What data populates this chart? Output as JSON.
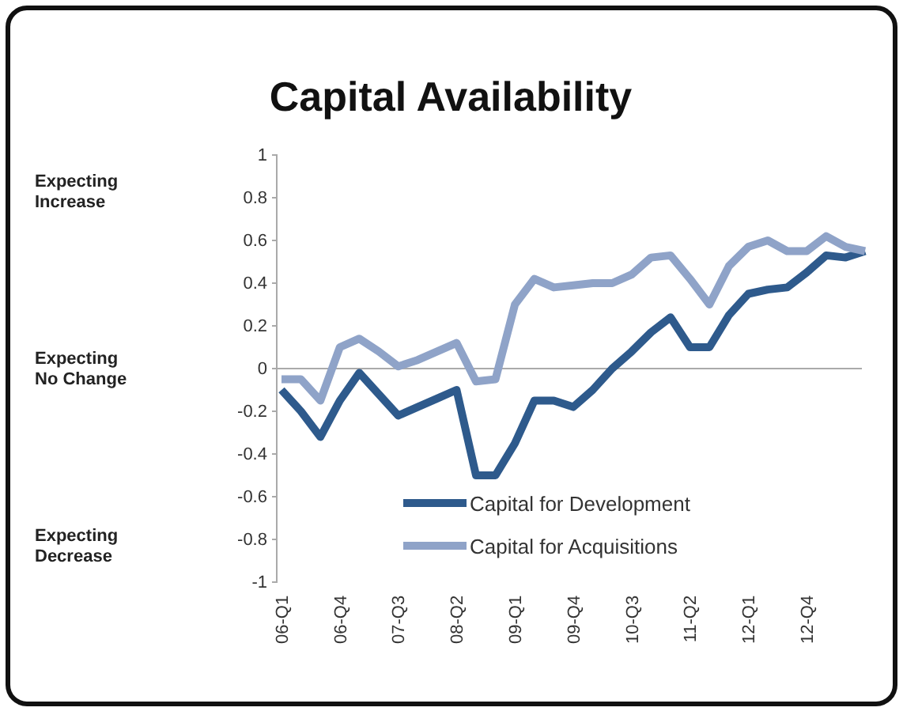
{
  "chart_data": {
    "type": "line",
    "title": "Capital Availability",
    "categories": [
      "06-Q1",
      null,
      null,
      "06-Q4",
      null,
      null,
      "07-Q3",
      null,
      null,
      "08-Q2",
      null,
      null,
      "09-Q1",
      null,
      null,
      "09-Q4",
      null,
      null,
      "10-Q3",
      null,
      null,
      "11-Q2",
      null,
      null,
      "12-Q1",
      null,
      null,
      "12-Q4",
      null,
      null,
      null
    ],
    "series": [
      {
        "name": "Capital for Development",
        "color": "#2e5a8c",
        "values": [
          -0.1,
          -0.2,
          -0.32,
          -0.15,
          -0.02,
          -0.12,
          -0.22,
          -0.18,
          -0.14,
          -0.1,
          -0.5,
          -0.5,
          -0.35,
          -0.15,
          -0.15,
          -0.18,
          -0.1,
          0.0,
          0.08,
          0.17,
          0.24,
          0.1,
          0.1,
          0.25,
          0.35,
          0.37,
          0.38,
          0.45,
          0.53,
          0.52,
          0.55
        ]
      },
      {
        "name": "Capital for Acquisitions",
        "color": "#8fa3c8",
        "values": [
          -0.05,
          -0.05,
          -0.15,
          0.1,
          0.14,
          0.08,
          0.01,
          0.04,
          0.08,
          0.12,
          -0.06,
          -0.05,
          0.3,
          0.42,
          0.38,
          0.39,
          0.4,
          0.4,
          0.44,
          0.52,
          0.53,
          0.42,
          0.3,
          0.48,
          0.57,
          0.6,
          0.55,
          0.55,
          0.62,
          0.57,
          0.55
        ]
      }
    ],
    "ylim": [
      -1,
      1
    ],
    "yticks": [
      -1,
      -0.8,
      -0.6,
      -0.4,
      -0.2,
      0,
      0.2,
      0.4,
      0.6,
      0.8,
      1
    ],
    "annotations": [
      "Expecting Increase",
      "Expecting No Change",
      "Expecting Decrease"
    ],
    "legend": "bottom right",
    "marker": "none",
    "line_style": "solid"
  }
}
